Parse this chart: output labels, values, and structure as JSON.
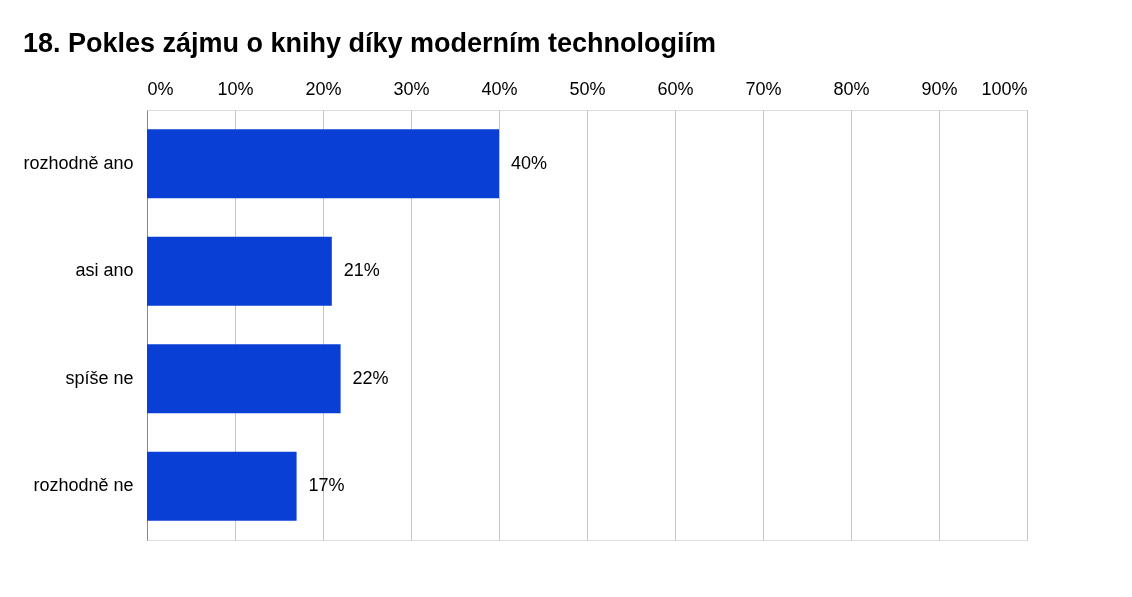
{
  "chart_data": {
    "type": "bar",
    "orientation": "horizontal",
    "title": "18. Pokles zájmu o knihy díky moderním technologiím",
    "categories": [
      "rozhodně ano",
      "asi ano",
      "spíše ne",
      "rozhodně ne"
    ],
    "values": [
      40,
      21,
      22,
      17
    ],
    "value_labels": [
      "40%",
      "21%",
      "22%",
      "17%"
    ],
    "color": "#0a3fd6",
    "xlim": [
      0,
      100
    ],
    "xticks": [
      {
        "value": 0,
        "label": "0%"
      },
      {
        "value": 10,
        "label": "10%"
      },
      {
        "value": 20,
        "label": "20%"
      },
      {
        "value": 30,
        "label": "30%"
      },
      {
        "value": 40,
        "label": "40%"
      },
      {
        "value": 50,
        "label": "50%"
      },
      {
        "value": 60,
        "label": "60%"
      },
      {
        "value": 70,
        "label": "70%"
      },
      {
        "value": 80,
        "label": "80%"
      },
      {
        "value": 90,
        "label": "90%"
      },
      {
        "value": 100,
        "label": "100%"
      }
    ],
    "grid": "x"
  }
}
